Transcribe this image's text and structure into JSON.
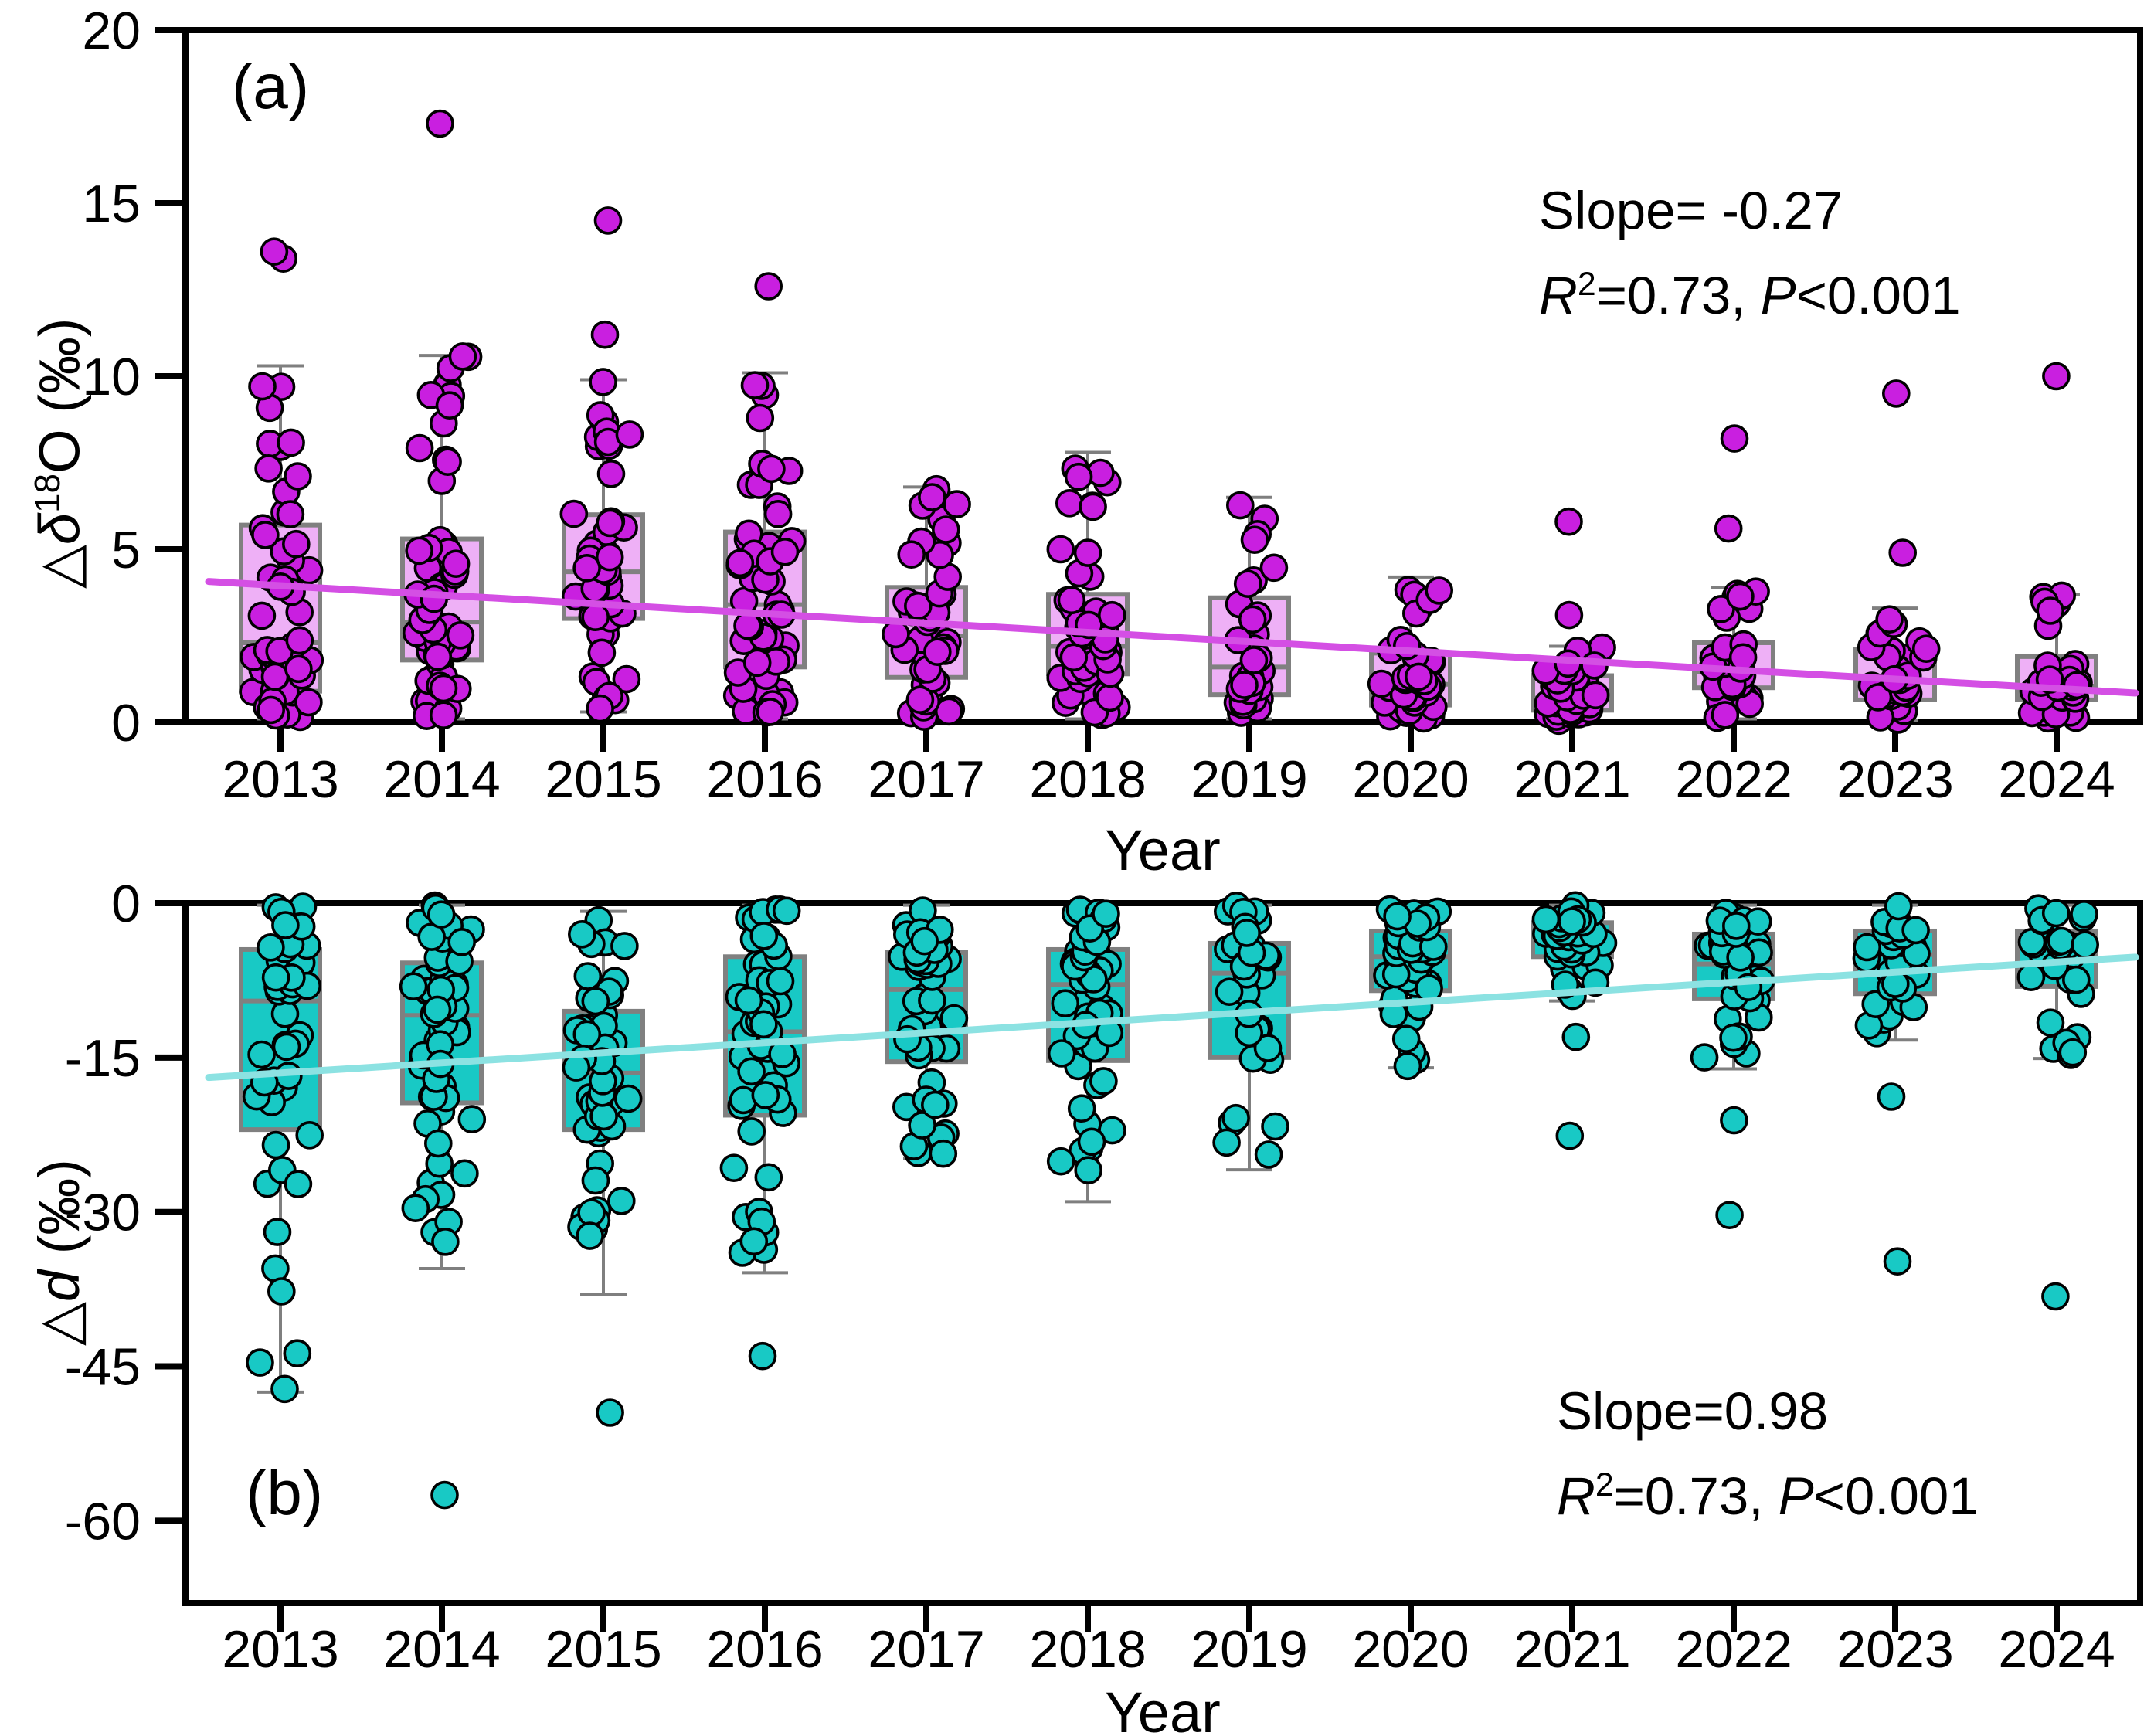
{
  "figure_title": "",
  "background": "#ffffff",
  "panel_a": {
    "letter": "(a)",
    "ylabel": {
      "triangle": "△",
      "delta": "δ",
      "sup": "18",
      "tail": "O (‰)"
    },
    "xlabel": "Year",
    "annotation": {
      "line1": "Slope= -0.27",
      "r": "R",
      "r_sup": "2",
      "mid": "=0.73, ",
      "p": "P",
      "tail": "<0.001"
    }
  },
  "panel_b": {
    "letter": "(b)",
    "ylabel": {
      "triangle": "△",
      "d": "d",
      "tail": " (‰)"
    },
    "xlabel": "Year",
    "annotation": {
      "line1": "Slope=0.98",
      "r": "R",
      "r_sup": "2",
      "mid": "=0.73, ",
      "p": "P",
      "tail": "<0.001"
    }
  },
  "colors": {
    "point_a": "#c91fe0",
    "box_fill_a": "#eeb0f6",
    "trend_a": "#d44fe4",
    "point_b": "#18c9c5",
    "box_fill_b": "#18c9c5",
    "trend_b": "#8ce2e2",
    "box_border": "#808080",
    "whisker": "#7f7f7f",
    "axis": "#000000",
    "point_stroke": "#000000"
  },
  "chart_data": [
    {
      "type": "box-scatter",
      "panel": "a",
      "ylabel": "triangle-delta-18-O (permil)",
      "xlabel": "Year",
      "ylim": [
        0,
        20
      ],
      "yticks": [
        20,
        15,
        10,
        5,
        0
      ],
      "ytick_labels": [
        "20",
        "15",
        "10",
        "5",
        "0"
      ],
      "categories": [
        "2013",
        "2014",
        "2015",
        "2016",
        "2017",
        "2018",
        "2019",
        "2020",
        "2021",
        "2022",
        "2023",
        "2024"
      ],
      "legend": "none",
      "grid": false,
      "boxes": [
        {
          "year": "2013",
          "q1": 0.9,
          "median": 2.3,
          "q3": 5.7,
          "whisker_low": 0.1,
          "whisker_high": 10.3,
          "outliers": [
            13.4,
            13.6
          ],
          "n": 48
        },
        {
          "year": "2014",
          "q1": 1.8,
          "median": 2.9,
          "q3": 5.3,
          "whisker_low": 0.1,
          "whisker_high": 10.6,
          "outliers": [
            17.3
          ],
          "n": 60
        },
        {
          "year": "2015",
          "q1": 3.0,
          "median": 4.35,
          "q3": 6.0,
          "whisker_low": 0.3,
          "whisker_high": 9.9,
          "outliers": [
            14.5,
            11.2
          ],
          "n": 48
        },
        {
          "year": "2016",
          "q1": 1.6,
          "median": 3.4,
          "q3": 5.5,
          "whisker_low": 0.1,
          "whisker_high": 10.1,
          "outliers": [
            12.6
          ],
          "n": 52
        },
        {
          "year": "2017",
          "q1": 1.3,
          "median": 2.5,
          "q3": 3.9,
          "whisker_low": 0.1,
          "whisker_high": 6.8,
          "outliers": [],
          "n": 48
        },
        {
          "year": "2018",
          "q1": 1.4,
          "median": 2.2,
          "q3": 3.7,
          "whisker_low": 0.1,
          "whisker_high": 7.8,
          "outliers": [],
          "n": 48
        },
        {
          "year": "2019",
          "q1": 0.8,
          "median": 1.6,
          "q3": 3.6,
          "whisker_low": 0.1,
          "whisker_high": 6.5,
          "outliers": [],
          "n": 32
        },
        {
          "year": "2020",
          "q1": 0.5,
          "median": 1.1,
          "q3": 2.0,
          "whisker_low": 0.05,
          "whisker_high": 4.2,
          "outliers": [],
          "n": 42
        },
        {
          "year": "2021",
          "q1": 0.35,
          "median": 0.7,
          "q3": 1.35,
          "whisker_low": 0.05,
          "whisker_high": 2.2,
          "outliers": [
            5.8,
            3.1
          ],
          "n": 36
        },
        {
          "year": "2022",
          "q1": 1.0,
          "median": 1.45,
          "q3": 2.3,
          "whisker_low": 0.1,
          "whisker_high": 3.9,
          "outliers": [
            8.2,
            5.6
          ],
          "n": 36
        },
        {
          "year": "2023",
          "q1": 0.65,
          "median": 1.2,
          "q3": 2.1,
          "whisker_low": 0.05,
          "whisker_high": 3.3,
          "outliers": [
            9.5,
            4.9
          ],
          "n": 32
        },
        {
          "year": "2024",
          "q1": 0.65,
          "median": 1.05,
          "q3": 1.9,
          "whisker_low": 0.05,
          "whisker_high": 3.7,
          "outliers": [
            10.0
          ],
          "n": 30
        }
      ],
      "trend": {
        "slope": -0.27,
        "r2": 0.73,
        "p": "<0.001",
        "value_2013": 3.95,
        "value_2024": 0.98
      }
    },
    {
      "type": "box-scatter",
      "panel": "b",
      "ylabel": "triangle-d (permil)",
      "xlabel": "Year",
      "ylim": [
        -68,
        0
      ],
      "yticks": [
        0,
        -15,
        -30,
        -45,
        -60
      ],
      "ytick_labels": [
        "0",
        "-15",
        "-30",
        "-45",
        "-60"
      ],
      "categories": [
        "2013",
        "2014",
        "2015",
        "2016",
        "2017",
        "2018",
        "2019",
        "2020",
        "2021",
        "2022",
        "2023",
        "2024"
      ],
      "legend": "none",
      "grid": false,
      "boxes": [
        {
          "year": "2013",
          "q1": -22.0,
          "median": -9.5,
          "q3": -4.5,
          "whisker_low": -47.5,
          "whisker_high": -0.2,
          "outliers": [],
          "n": 48
        },
        {
          "year": "2014",
          "q1": -19.4,
          "median": -10.9,
          "q3": -5.8,
          "whisker_low": -35.5,
          "whisker_high": -0.2,
          "outliers": [
            -57.5
          ],
          "n": 60
        },
        {
          "year": "2015",
          "q1": -22.0,
          "median": -16.5,
          "q3": -10.5,
          "whisker_low": -38.0,
          "whisker_high": -0.8,
          "outliers": [
            -49.5
          ],
          "n": 48
        },
        {
          "year": "2016",
          "q1": -20.6,
          "median": -12.5,
          "q3": -5.2,
          "whisker_low": -35.9,
          "whisker_high": -0.2,
          "outliers": [
            -44.0
          ],
          "n": 52
        },
        {
          "year": "2017",
          "q1": -15.4,
          "median": -8.4,
          "q3": -4.8,
          "whisker_low": -24.8,
          "whisker_high": -0.2,
          "outliers": [],
          "n": 48
        },
        {
          "year": "2018",
          "q1": -15.3,
          "median": -7.9,
          "q3": -4.5,
          "whisker_low": -29.0,
          "whisker_high": -0.2,
          "outliers": [],
          "n": 48
        },
        {
          "year": "2019",
          "q1": -15.0,
          "median": -6.8,
          "q3": -3.9,
          "whisker_low": -25.9,
          "whisker_high": -0.2,
          "outliers": [],
          "n": 32
        },
        {
          "year": "2020",
          "q1": -8.5,
          "median": -5.2,
          "q3": -2.7,
          "whisker_low": -16.0,
          "whisker_high": -0.2,
          "outliers": [],
          "n": 42
        },
        {
          "year": "2021",
          "q1": -5.2,
          "median": -3.2,
          "q3": -1.9,
          "whisker_low": -9.5,
          "whisker_high": -0.2,
          "outliers": [
            -13.0,
            -22.6
          ],
          "n": 36
        },
        {
          "year": "2022",
          "q1": -9.3,
          "median": -5.9,
          "q3": -3.0,
          "whisker_low": -16.1,
          "whisker_high": -0.2,
          "outliers": [
            -21.1,
            -30.3
          ],
          "n": 36
        },
        {
          "year": "2023",
          "q1": -8.8,
          "median": -5.0,
          "q3": -2.7,
          "whisker_low": -13.3,
          "whisker_high": -0.2,
          "outliers": [
            -18.8,
            -34.8
          ],
          "n": 32
        },
        {
          "year": "2024",
          "q1": -8.1,
          "median": -4.3,
          "q3": -2.7,
          "whisker_low": -15.1,
          "whisker_high": -0.2,
          "outliers": [
            -38.2
          ],
          "n": 30
        }
      ],
      "trend": {
        "slope": 0.98,
        "r2": 0.73,
        "p": "<0.001",
        "value_2013": -16.5,
        "value_2024": -5.72
      }
    }
  ]
}
